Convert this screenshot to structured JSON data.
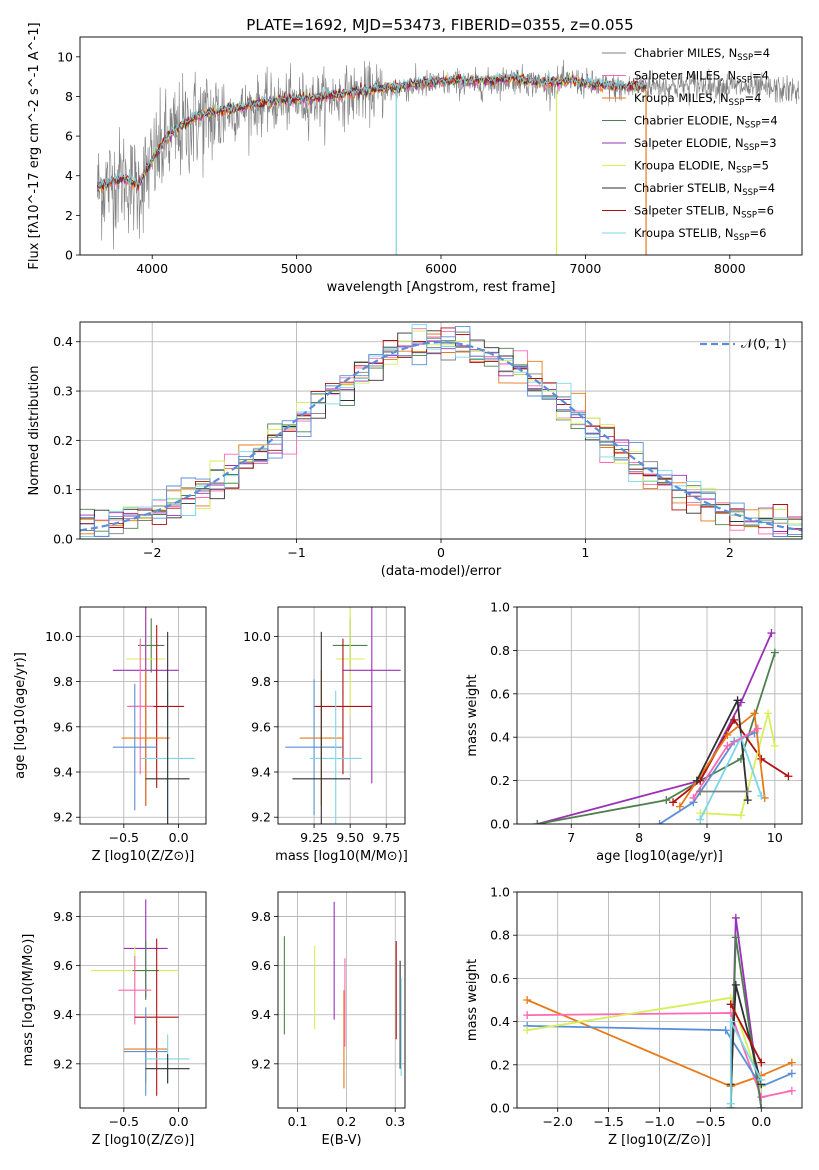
{
  "title": "PLATE=1692, MJD=53473, FIBERID=0355, z=0.055",
  "legend": [
    {
      "label": "Chabrier MILES, N",
      "sub": "SSP",
      "suffix": "=4",
      "color": "#7f7f7f"
    },
    {
      "label": "Salpeter MILES, N",
      "sub": "SSP",
      "suffix": "=4",
      "color": "#ff69b4"
    },
    {
      "label": "Kroupa MILES, N",
      "sub": "SSP",
      "suffix": "=4",
      "color": "#e87a18"
    },
    {
      "label": "Chabrier ELODIE, N",
      "sub": "SSP",
      "suffix": "=4",
      "color": "#4f7f4f"
    },
    {
      "label": "Salpeter ELODIE, N",
      "sub": "SSP",
      "suffix": "=3",
      "color": "#9b30b8"
    },
    {
      "label": "Kroupa ELODIE, N",
      "sub": "SSP",
      "suffix": "=5",
      "color": "#d7ef5a"
    },
    {
      "label": "Chabrier STELIB, N",
      "sub": "SSP",
      "suffix": "=4",
      "color": "#303030"
    },
    {
      "label": "Salpeter STELIB, N",
      "sub": "SSP",
      "suffix": "=6",
      "color": "#b01010"
    },
    {
      "label": "Kroupa STELIB, N",
      "sub": "SSP",
      "suffix": "=6",
      "color": "#7dd6e8"
    }
  ],
  "chart_data": [
    {
      "id": "spectrum",
      "type": "line",
      "title": "PLATE=1692, MJD=53473, FIBERID=0355, z=0.055",
      "xlabel": "wavelength [Angstrom, rest frame]",
      "ylabel": "Flux [fλ10^-17 erg cm^-2 s^-1 A^-1]",
      "xlim": [
        3500,
        8500
      ],
      "ylim": [
        0,
        11
      ],
      "xticks": [
        4000,
        5000,
        6000,
        7000,
        8000
      ],
      "yticks": [
        0,
        2,
        4,
        6,
        8,
        10
      ],
      "data_wavelength": [
        3620,
        3700,
        3800,
        3900,
        4000,
        4100,
        4200,
        4300,
        4500,
        4700,
        4900,
        5100,
        5300,
        5500,
        5700,
        5900,
        6100,
        6300,
        6500,
        6700,
        6900,
        7100,
        7300,
        7400,
        7600,
        7800,
        8000,
        8200,
        8400,
        8480
      ],
      "data_flux": [
        3.3,
        3.6,
        3.9,
        3.3,
        4.6,
        5.7,
        6.3,
        6.8,
        7.1,
        7.5,
        7.7,
        7.8,
        8.0,
        8.2,
        8.4,
        8.6,
        8.7,
        8.6,
        8.9,
        8.6,
        8.8,
        8.5,
        8.4,
        8.6,
        8.5,
        8.6,
        8.5,
        8.4,
        8.3,
        8.3
      ],
      "model_wavelength": [
        3620,
        3700,
        3800,
        3900,
        4000,
        4100,
        4200,
        4300,
        4500,
        4700,
        4900,
        5100,
        5300,
        5500,
        5700,
        5900,
        6100,
        6300,
        6500,
        6700,
        6900,
        7100,
        7300,
        7420
      ],
      "model_flux": [
        3.4,
        3.6,
        3.9,
        3.5,
        4.8,
        5.9,
        6.5,
        7.0,
        7.3,
        7.6,
        7.8,
        7.9,
        8.1,
        8.3,
        8.5,
        8.7,
        8.8,
        8.8,
        8.9,
        8.7,
        8.8,
        8.6,
        8.5,
        8.5
      ]
    },
    {
      "id": "residuals",
      "type": "histogram",
      "xlabel": "(data-model)/error",
      "ylabel": "Normed distribution",
      "xlim": [
        -2.5,
        2.5
      ],
      "ylim": [
        0,
        0.44
      ],
      "xticks": [
        -2,
        -1,
        0,
        1,
        2
      ],
      "yticks": [
        0.0,
        0.1,
        0.2,
        0.3,
        0.4
      ],
      "bin_width": 0.1,
      "reference": {
        "name": "𝒩(0, 1)",
        "color": "#5b8fd9",
        "mean": 0,
        "sigma": 1
      }
    },
    {
      "id": "age-vs-z",
      "type": "errorbar",
      "xlabel": "Z [log10(Z/Z⊙)]",
      "ylabel": "age  [log10(age/yr)]",
      "xlim": [
        -0.9,
        0.25
      ],
      "ylim": [
        9.17,
        10.13
      ],
      "xticks": [
        -0.5,
        0.0
      ],
      "yticks": [
        9.2,
        9.4,
        9.6,
        9.8,
        10.0
      ],
      "points": [
        {
          "x": -0.25,
          "xerr": 0.12,
          "y": 9.96,
          "yerr": 0.12,
          "color": "#4f7f4f"
        },
        {
          "x": -0.3,
          "xerr": 0.18,
          "y": 9.9,
          "yerr": 0.55,
          "color": "#d7ef5a"
        },
        {
          "x": -0.3,
          "xerr": 0.3,
          "y": 9.85,
          "yerr": 0.6,
          "color": "#9b30b8"
        },
        {
          "x": -0.2,
          "xerr": 0.25,
          "y": 9.69,
          "yerr": 0.36,
          "color": "#b01010"
        },
        {
          "x": -0.35,
          "xerr": 0.12,
          "y": 9.69,
          "yerr": 0.3,
          "color": "#ff69b4"
        },
        {
          "x": -0.3,
          "xerr": 0.22,
          "y": 9.55,
          "yerr": 0.3,
          "color": "#e87a18"
        },
        {
          "x": -0.4,
          "xerr": 0.2,
          "y": 9.51,
          "yerr": 0.28,
          "color": "#5b8fd9"
        },
        {
          "x": -0.1,
          "xerr": 0.25,
          "y": 9.46,
          "yerr": 0.3,
          "color": "#7dd6e8"
        },
        {
          "x": -0.1,
          "xerr": 0.2,
          "y": 9.37,
          "yerr": 0.65,
          "color": "#303030"
        }
      ]
    },
    {
      "id": "age-vs-mass",
      "type": "errorbar",
      "xlabel": "mass [log10(M/M⊙)]",
      "ylabel": "",
      "xlim": [
        9.0,
        9.88
      ],
      "ylim": [
        9.17,
        10.13
      ],
      "xticks": [
        9.25,
        9.5,
        9.75
      ],
      "yticks": [
        9.2,
        9.4,
        9.6,
        9.8,
        10.0
      ],
      "points": [
        {
          "x": 9.5,
          "xerr": 0.12,
          "y": 9.96,
          "yerr": 0.12,
          "color": "#4f7f4f"
        },
        {
          "x": 9.5,
          "xerr": 0.1,
          "y": 9.9,
          "yerr": 0.25,
          "color": "#d7ef5a"
        },
        {
          "x": 9.65,
          "xerr": 0.2,
          "y": 9.85,
          "yerr": 0.5,
          "color": "#9b30b8"
        },
        {
          "x": 9.45,
          "xerr": 0.2,
          "y": 9.69,
          "yerr": 0.3,
          "color": "#b01010"
        },
        {
          "x": 9.3,
          "xerr": 0.15,
          "y": 9.55,
          "yerr": 0.3,
          "color": "#e87a18"
        },
        {
          "x": 9.25,
          "xerr": 0.2,
          "y": 9.51,
          "yerr": 0.3,
          "color": "#5b8fd9"
        },
        {
          "x": 9.4,
          "xerr": 0.18,
          "y": 9.46,
          "yerr": 0.3,
          "color": "#7dd6e8"
        },
        {
          "x": 9.3,
          "xerr": 0.2,
          "y": 9.37,
          "yerr": 0.65,
          "color": "#303030"
        }
      ]
    },
    {
      "id": "weight-vs-age",
      "type": "line",
      "xlabel": "age  [log10(age/yr)]",
      "ylabel": "mass weight",
      "xlim": [
        6.2,
        10.4
      ],
      "ylim": [
        0,
        1
      ],
      "xticks": [
        7,
        8,
        9,
        10
      ],
      "yticks": [
        0.0,
        0.2,
        0.4,
        0.6,
        0.8,
        1.0
      ],
      "series": [
        {
          "color": "#9b30b8",
          "x": [
            6.5,
            8.9,
            9.5,
            9.95
          ],
          "y": [
            0.0,
            0.2,
            0.56,
            0.88
          ]
        },
        {
          "color": "#4f7f4f",
          "x": [
            6.5,
            8.4,
            8.9,
            9.5,
            10.0
          ],
          "y": [
            0.0,
            0.11,
            0.2,
            0.3,
            0.79
          ]
        },
        {
          "color": "#b01010",
          "x": [
            8.5,
            8.9,
            9.4,
            9.8,
            10.2
          ],
          "y": [
            0.1,
            0.2,
            0.48,
            0.3,
            0.22
          ]
        },
        {
          "color": "#d7ef5a",
          "x": [
            8.9,
            9.5,
            9.9,
            10.0
          ],
          "y": [
            0.05,
            0.04,
            0.51,
            0.36
          ]
        },
        {
          "color": "#e87a18",
          "x": [
            8.6,
            9.3,
            9.7,
            9.85
          ],
          "y": [
            0.08,
            0.41,
            0.51,
            0.12
          ]
        },
        {
          "color": "#303030",
          "x": [
            8.85,
            9.45,
            9.6
          ],
          "y": [
            0.2,
            0.57,
            0.11
          ]
        },
        {
          "color": "#5b8fd9",
          "x": [
            8.3,
            8.8,
            9.4,
            9.7
          ],
          "y": [
            0.0,
            0.1,
            0.38,
            0.42
          ]
        },
        {
          "color": "#7dd6e8",
          "x": [
            8.9,
            9.5,
            9.8
          ],
          "y": [
            0.02,
            0.4,
            0.13
          ]
        },
        {
          "color": "#ff69b4",
          "x": [
            8.8,
            9.3,
            9.75
          ],
          "y": [
            0.12,
            0.36,
            0.44
          ]
        },
        {
          "color": "#7f7f7f",
          "x": [
            8.9,
            9.6
          ],
          "y": [
            0.15,
            0.15
          ]
        }
      ]
    },
    {
      "id": "mass-vs-z",
      "type": "errorbar",
      "xlabel": "Z [log10(Z/Z⊙)]",
      "ylabel": "mass [log10(M/M⊙)]",
      "xlim": [
        -0.9,
        0.25
      ],
      "ylim": [
        9.02,
        9.9
      ],
      "xticks": [
        -0.5,
        0.0
      ],
      "yticks": [
        9.2,
        9.4,
        9.6,
        9.8
      ],
      "points": [
        {
          "x": -0.3,
          "xerr": 0.2,
          "y": 9.67,
          "yerr": 0.2,
          "color": "#9b30b8"
        },
        {
          "x": -0.4,
          "xerr": 0.4,
          "y": 9.58,
          "yerr": 0.1,
          "color": "#d7ef5a"
        },
        {
          "x": -0.3,
          "xerr": 0.12,
          "y": 9.58,
          "yerr": 0.12,
          "color": "#4f7f4f"
        },
        {
          "x": -0.4,
          "xerr": 0.15,
          "y": 9.5,
          "yerr": 0.14,
          "color": "#ff69b4"
        },
        {
          "x": -0.2,
          "xerr": 0.2,
          "y": 9.39,
          "yerr": 0.32,
          "color": "#b01010"
        },
        {
          "x": -0.3,
          "xerr": 0.2,
          "y": 9.26,
          "yerr": 0.14,
          "color": "#e87a18"
        },
        {
          "x": -0.3,
          "xerr": 0.2,
          "y": 9.25,
          "yerr": 0.18,
          "color": "#5b8fd9"
        },
        {
          "x": -0.1,
          "xerr": 0.2,
          "y": 9.22,
          "yerr": 0.1,
          "color": "#7dd6e8"
        },
        {
          "x": -0.1,
          "xerr": 0.2,
          "y": 9.18,
          "yerr": 0.06,
          "color": "#303030"
        }
      ]
    },
    {
      "id": "mass-vs-ebv",
      "type": "errorbar",
      "xlabel": "E(B-V)",
      "ylabel": "",
      "xlim": [
        0.06,
        0.32
      ],
      "ylim": [
        9.02,
        9.9
      ],
      "xticks": [
        0.1,
        0.2,
        0.3
      ],
      "yticks": [
        9.2,
        9.4,
        9.6,
        9.8
      ],
      "points": [
        {
          "x": 0.073,
          "y": 9.52,
          "yerr": 0.2,
          "color": "#4f7f4f"
        },
        {
          "x": 0.135,
          "y": 9.51,
          "yerr": 0.17,
          "color": "#d7ef5a"
        },
        {
          "x": 0.175,
          "y": 9.62,
          "yerr": 0.24,
          "color": "#9b30b8"
        },
        {
          "x": 0.195,
          "y": 9.3,
          "yerr": 0.2,
          "color": "#e87a18"
        },
        {
          "x": 0.197,
          "y": 9.45,
          "yerr": 0.18,
          "color": "#ff69b4"
        },
        {
          "x": 0.302,
          "y": 9.5,
          "yerr": 0.2,
          "color": "#b01010"
        },
        {
          "x": 0.31,
          "y": 9.4,
          "yerr": 0.22,
          "color": "#303030"
        },
        {
          "x": 0.312,
          "y": 9.35,
          "yerr": 0.2,
          "color": "#7dd6e8"
        }
      ]
    },
    {
      "id": "weight-vs-z",
      "type": "line",
      "xlabel": "Z [log10(Z/Z⊙)]",
      "ylabel": "mass weight",
      "xlim": [
        -2.4,
        0.4
      ],
      "ylim": [
        0,
        1
      ],
      "xticks": [
        -2.0,
        -1.5,
        -1.0,
        -0.5,
        0.0
      ],
      "yticks": [
        0.0,
        0.2,
        0.4,
        0.6,
        0.8,
        1.0
      ],
      "series": [
        {
          "color": "#e87a18",
          "x": [
            -2.3,
            -0.3,
            0.0,
            0.3
          ],
          "y": [
            0.5,
            0.1,
            0.15,
            0.21
          ]
        },
        {
          "color": "#ff69b4",
          "x": [
            -2.3,
            -0.3,
            0.0,
            0.3
          ],
          "y": [
            0.43,
            0.44,
            0.05,
            0.08
          ]
        },
        {
          "color": "#5b8fd9",
          "x": [
            -2.3,
            -0.35,
            0.0,
            0.3
          ],
          "y": [
            0.38,
            0.36,
            0.1,
            0.16
          ]
        },
        {
          "color": "#d7ef5a",
          "x": [
            -2.3,
            -0.3,
            0.0
          ],
          "y": [
            0.36,
            0.51,
            0.1
          ]
        },
        {
          "color": "#9b30b8",
          "x": [
            -0.3,
            -0.25,
            0.0
          ],
          "y": [
            0.0,
            0.88,
            0.0
          ]
        },
        {
          "color": "#4f7f4f",
          "x": [
            -0.3,
            -0.25,
            0.0
          ],
          "y": [
            0.0,
            0.79,
            0.0
          ]
        },
        {
          "color": "#303030",
          "x": [
            -0.3,
            -0.25,
            0.0
          ],
          "y": [
            0.11,
            0.57,
            0.11
          ]
        },
        {
          "color": "#b01010",
          "x": [
            -0.3,
            0.0
          ],
          "y": [
            0.48,
            0.21
          ]
        },
        {
          "color": "#7dd6e8",
          "x": [
            -0.3,
            -0.3,
            0.0
          ],
          "y": [
            0.02,
            0.4,
            0.13
          ]
        }
      ]
    }
  ]
}
